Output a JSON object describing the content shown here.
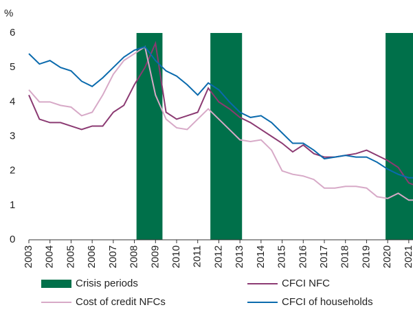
{
  "chart_data": {
    "type": "line",
    "y_unit": "%",
    "x": [
      2003,
      2003.5,
      2004,
      2004.5,
      2005,
      2005.5,
      2006,
      2006.5,
      2007,
      2007.5,
      2008,
      2008.5,
      2009,
      2009.5,
      2010,
      2010.5,
      2011,
      2011.5,
      2012,
      2012.5,
      2013,
      2013.5,
      2014,
      2014.5,
      2015,
      2015.5,
      2016,
      2016.5,
      2017,
      2017.5,
      2018,
      2018.5,
      2019,
      2019.5,
      2020,
      2020.5,
      2021,
      2021.2
    ],
    "series": [
      {
        "name": "CFCI NFC",
        "color": "#8b3a72",
        "values": [
          4.2,
          3.5,
          3.4,
          3.4,
          3.3,
          3.2,
          3.3,
          3.3,
          3.7,
          3.9,
          4.5,
          5.0,
          5.7,
          3.7,
          3.5,
          3.6,
          3.7,
          4.4,
          4.0,
          3.8,
          3.55,
          3.4,
          3.2,
          3.0,
          2.8,
          2.55,
          2.75,
          2.5,
          2.4,
          2.4,
          2.45,
          2.5,
          2.6,
          2.45,
          2.3,
          2.1,
          1.65,
          1.6
        ]
      },
      {
        "name": "Cost of credit  NFCs",
        "color": "#d7a9c7",
        "values": [
          4.35,
          4.0,
          4.0,
          3.9,
          3.85,
          3.6,
          3.7,
          4.2,
          4.8,
          5.2,
          5.4,
          5.6,
          4.2,
          3.5,
          3.25,
          3.2,
          3.5,
          3.8,
          3.5,
          3.2,
          2.9,
          2.85,
          2.9,
          2.6,
          2.0,
          1.9,
          1.85,
          1.75,
          1.5,
          1.5,
          1.55,
          1.55,
          1.5,
          1.25,
          1.2,
          1.35,
          1.15,
          1.15
        ]
      },
      {
        "name": "CFCI of households",
        "color": "#0a6aad",
        "values": [
          5.4,
          5.1,
          5.2,
          5.0,
          4.9,
          4.6,
          4.45,
          4.7,
          5.0,
          5.3,
          5.5,
          5.6,
          5.2,
          4.9,
          4.75,
          4.5,
          4.2,
          4.55,
          4.35,
          4.0,
          3.7,
          3.55,
          3.6,
          3.4,
          3.1,
          2.8,
          2.8,
          2.6,
          2.35,
          2.4,
          2.45,
          2.4,
          2.4,
          2.25,
          2.05,
          1.9,
          1.8,
          1.8
        ]
      }
    ],
    "crisis_periods": {
      "name": "Crisis periods",
      "color": "#00704a",
      "ranges": [
        [
          2008.1,
          2009.33
        ],
        [
          2011.6,
          2013.1
        ],
        [
          2019.9,
          2021.2
        ]
      ]
    },
    "xlim": [
      2003,
      2021.2
    ],
    "xticks": [
      2003,
      2004,
      2005,
      2006,
      2007,
      2008,
      2009,
      2010,
      2011,
      2012,
      2013,
      2014,
      2015,
      2016,
      2017,
      2018,
      2019,
      2020,
      2021
    ],
    "ylim": [
      0,
      6
    ],
    "yticks": [
      0,
      1,
      2,
      3,
      4,
      5,
      6
    ]
  }
}
